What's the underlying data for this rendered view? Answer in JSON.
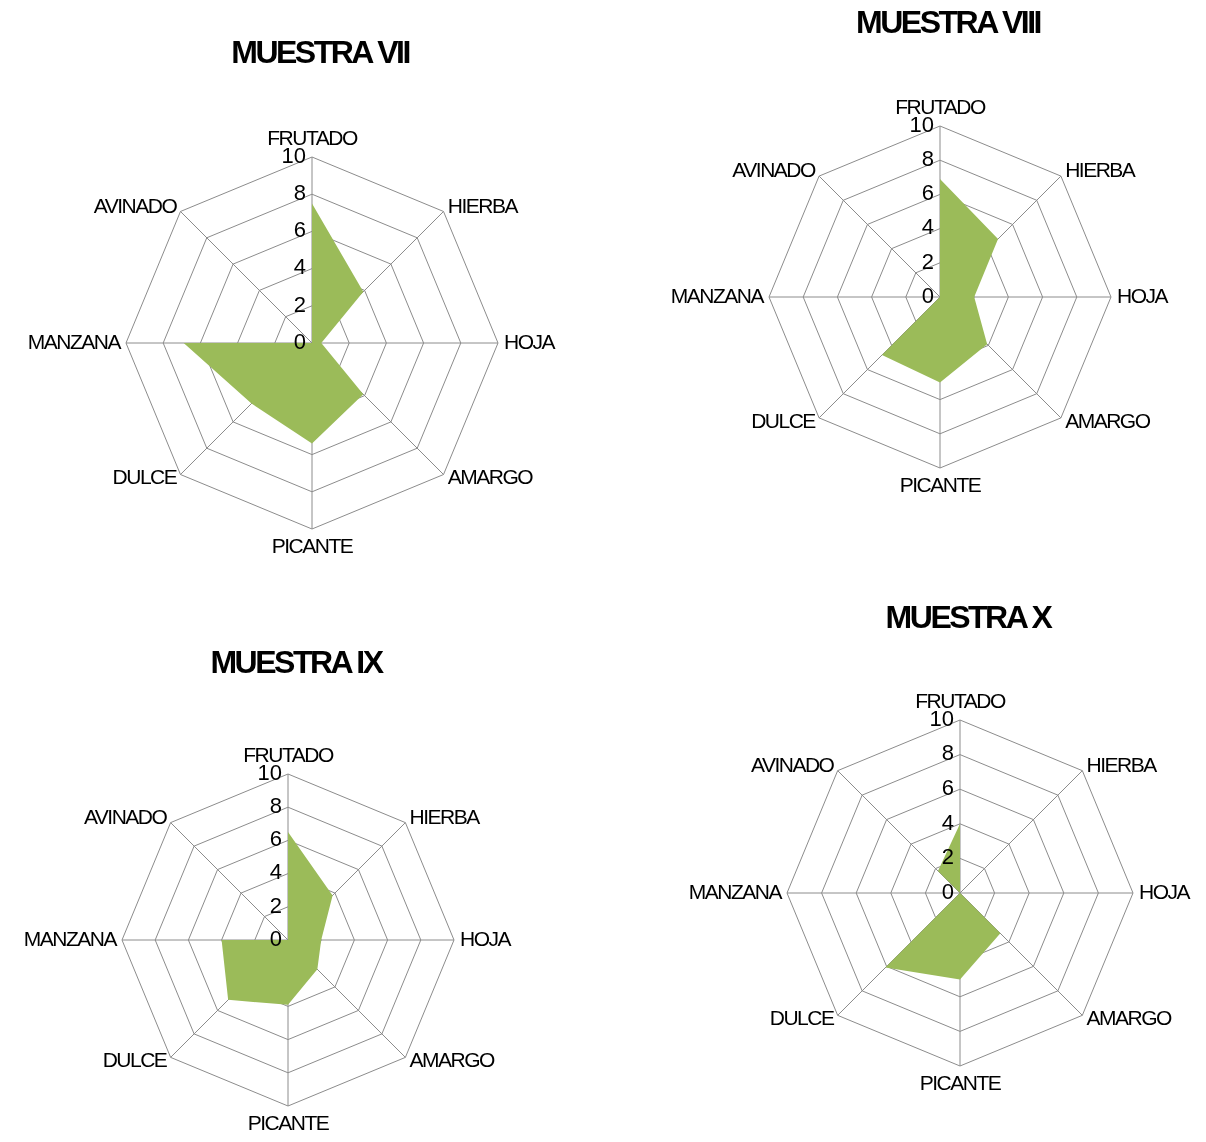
{
  "chart_data": [
    {
      "type": "radar",
      "title": "MUESTRA VII",
      "categories": [
        "FRUTADO",
        "HIERBA",
        "HOJA",
        "AMARGO",
        "PICANTE",
        "DULCE",
        "MANZANA",
        "AVINADO"
      ],
      "series": [
        {
          "color": "#9bbb59",
          "values": [
            7.5,
            3.9,
            0.5,
            3.9,
            5.4,
            4.6,
            6.9,
            0
          ]
        }
      ],
      "ylim": [
        0,
        10
      ],
      "yticks": [
        0,
        2,
        4,
        6,
        8,
        10
      ],
      "grid": true
    },
    {
      "type": "radar",
      "title": "MUESTRA VIII",
      "categories": [
        "FRUTADO",
        "HIERBA",
        "HOJA",
        "AMARGO",
        "PICANTE",
        "DULCE",
        "MANZANA",
        "AVINADO"
      ],
      "series": [
        {
          "color": "#9bbb59",
          "values": [
            6.9,
            4.8,
            2.0,
            3.9,
            5.0,
            4.8,
            0,
            0
          ]
        }
      ],
      "ylim": [
        0,
        10
      ],
      "yticks": [
        0,
        2,
        4,
        6,
        8,
        10
      ],
      "grid": true
    },
    {
      "type": "radar",
      "title": "MUESTRA IX",
      "categories": [
        "FRUTADO",
        "HIERBA",
        "HOJA",
        "AMARGO",
        "PICANTE",
        "DULCE",
        "MANZANA",
        "AVINADO"
      ],
      "series": [
        {
          "color": "#9bbb59",
          "values": [
            6.5,
            3.8,
            2.0,
            2.5,
            3.9,
            5.1,
            4.0,
            0
          ]
        }
      ],
      "ylim": [
        0,
        10
      ],
      "yticks": [
        0,
        2,
        4,
        6,
        8,
        10
      ],
      "grid": true
    },
    {
      "type": "radar",
      "title": "MUESTRA X",
      "categories": [
        "FRUTADO",
        "HIERBA",
        "HOJA",
        "AMARGO",
        "PICANTE",
        "DULCE",
        "MANZANA",
        "AVINADO"
      ],
      "series": [
        {
          "color": "#9bbb59",
          "values": [
            4.0,
            0,
            0,
            3.3,
            5.0,
            6.1,
            0,
            1.8
          ]
        }
      ],
      "ylim": [
        0,
        10
      ],
      "yticks": [
        0,
        2,
        4,
        6,
        8,
        10
      ],
      "grid": true
    }
  ]
}
